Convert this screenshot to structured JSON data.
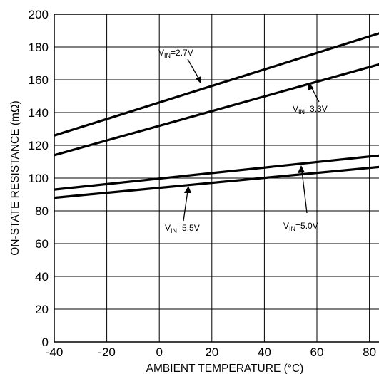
{
  "chart_data": {
    "type": "line",
    "xlabel": "AMBIENT TEMPERATURE (°C)",
    "ylabel": "ON-STATE RESISTANCE (mΩ)",
    "xlim": [
      -40,
      85
    ],
    "ylim": [
      0,
      200
    ],
    "x_ticks": [
      "-40",
      "-20",
      "0",
      "20",
      "40",
      "60",
      "80"
    ],
    "y_ticks": [
      "0",
      "20",
      "40",
      "60",
      "80",
      "100",
      "120",
      "140",
      "160",
      "180",
      "200"
    ],
    "grid": true,
    "series": [
      {
        "x": [
          -40,
          85
        ],
        "y": [
          126,
          189
        ]
      },
      {
        "x": [
          -40,
          85
        ],
        "y": [
          114,
          170
        ]
      },
      {
        "x": [
          -40,
          85
        ],
        "y": [
          93,
          114
        ]
      },
      {
        "x": [
          -40,
          85
        ],
        "y": [
          88,
          107
        ]
      }
    ],
    "annotations": [
      {
        "prefix": "V",
        "sub": "IN",
        "suffix": "=2.7V"
      },
      {
        "prefix": "V",
        "sub": "IN",
        "suffix": "=3.3V"
      },
      {
        "prefix": "V",
        "sub": "IN",
        "suffix": "=5.5V"
      },
      {
        "prefix": "V",
        "sub": "IN",
        "suffix": "=5.0V"
      }
    ]
  }
}
